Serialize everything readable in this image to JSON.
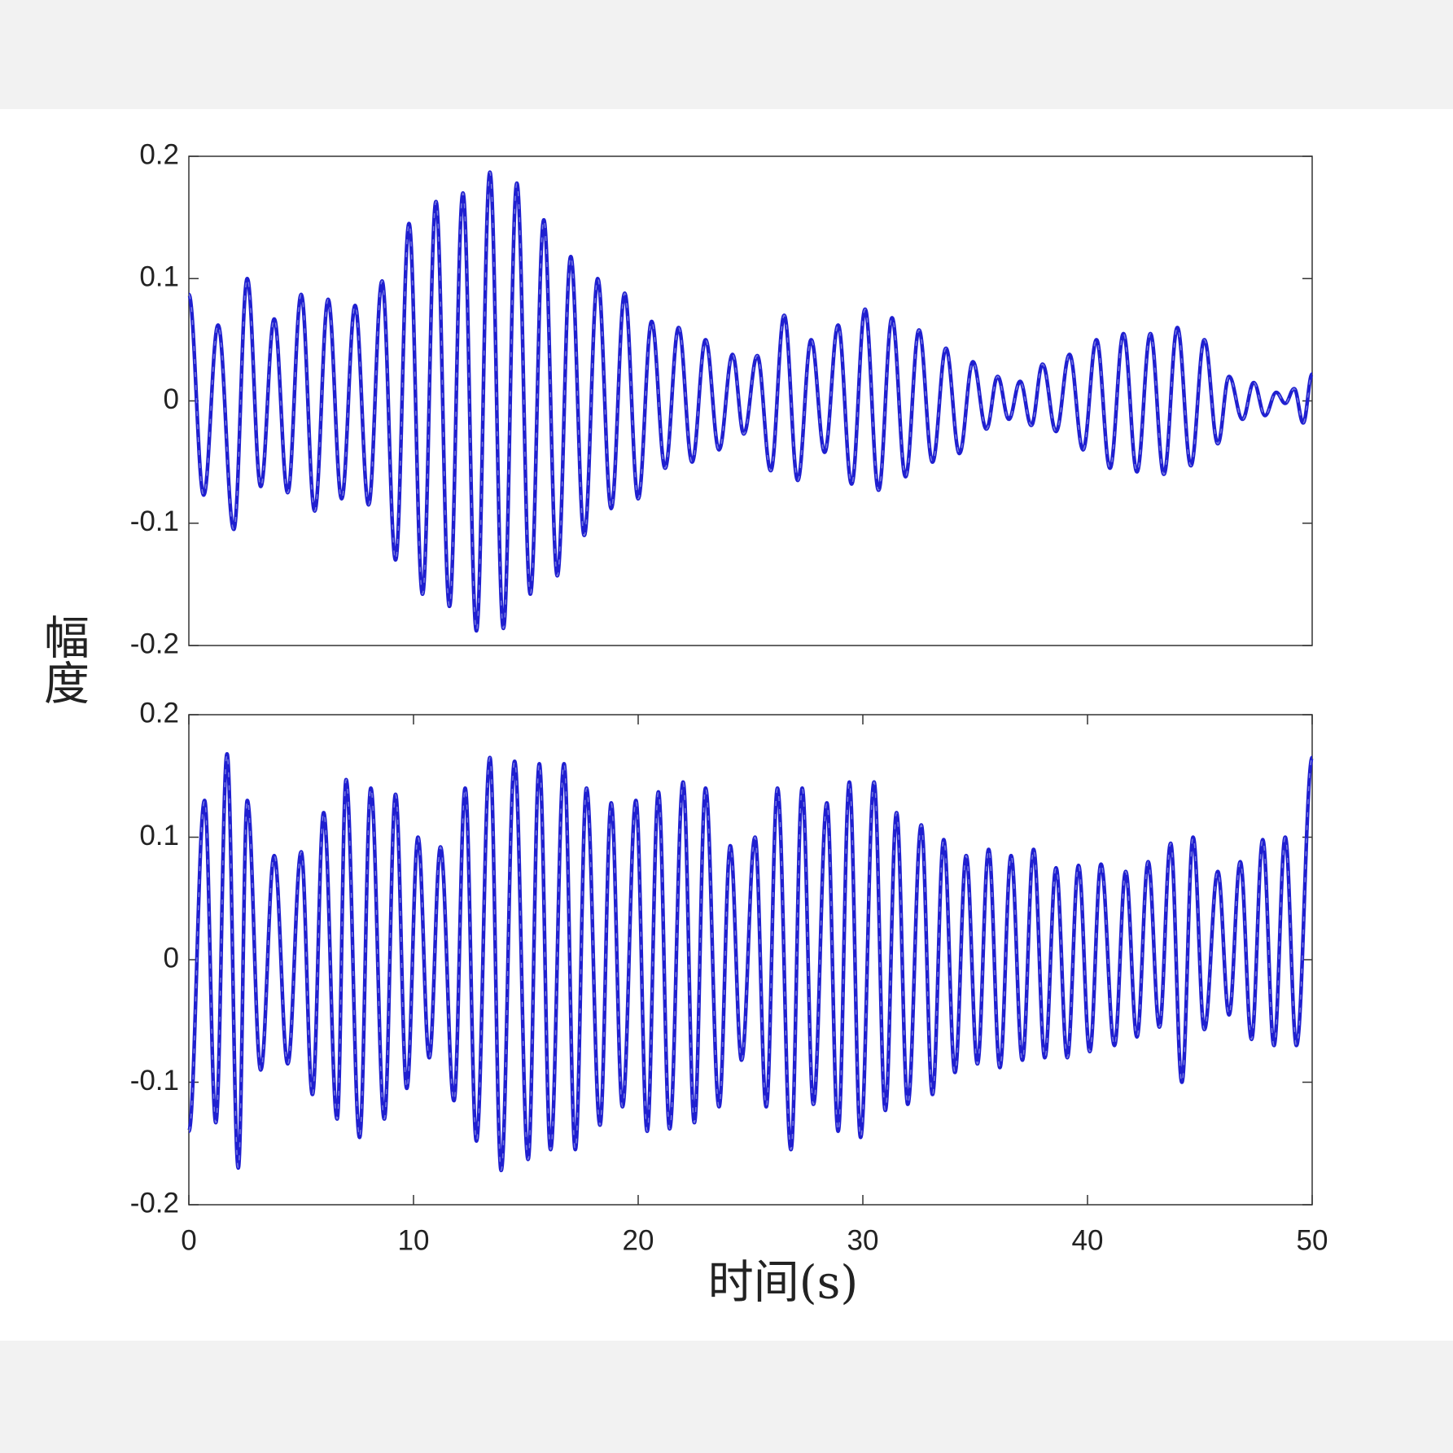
{
  "chart_data": [
    {
      "type": "line",
      "ylabel": "幅度",
      "color": "#1f1fd0",
      "xlim": [
        0,
        50
      ],
      "ylim": [
        -0.2,
        0.2
      ],
      "yticks": [
        0.2,
        0.1,
        0,
        -0.1,
        -0.2
      ],
      "x": [
        0,
        0.66,
        1.3,
        2.0,
        2.6,
        3.2,
        3.8,
        4.4,
        5.0,
        5.6,
        6.2,
        6.8,
        7.4,
        8.0,
        8.6,
        9.2,
        9.8,
        10.4,
        11.0,
        11.6,
        12.2,
        12.8,
        13.4,
        14.0,
        14.6,
        15.2,
        15.8,
        16.4,
        17.0,
        17.6,
        18.2,
        18.8,
        19.4,
        20.0,
        20.6,
        21.2,
        21.8,
        22.4,
        23.0,
        23.6,
        24.2,
        24.7,
        25.3,
        25.9,
        26.5,
        27.1,
        27.7,
        28.3,
        28.9,
        29.5,
        30.1,
        30.7,
        31.3,
        31.9,
        32.5,
        33.1,
        33.7,
        34.3,
        34.9,
        35.5,
        36.0,
        36.5,
        37.0,
        37.5,
        38.0,
        38.6,
        39.2,
        39.8,
        40.4,
        41.0,
        41.6,
        42.2,
        42.8,
        43.4,
        44.0,
        44.6,
        45.2,
        45.8,
        46.3,
        46.9,
        47.4,
        47.9,
        48.4,
        48.8,
        49.2,
        49.6,
        50
      ],
      "values": [
        0.087,
        -0.077,
        0.062,
        -0.105,
        0.1,
        -0.07,
        0.067,
        -0.075,
        0.087,
        -0.09,
        0.083,
        -0.08,
        0.078,
        -0.085,
        0.098,
        -0.13,
        0.145,
        -0.158,
        0.163,
        -0.168,
        0.17,
        -0.188,
        0.187,
        -0.186,
        0.178,
        -0.158,
        0.148,
        -0.143,
        0.118,
        -0.11,
        0.1,
        -0.088,
        0.088,
        -0.08,
        0.065,
        -0.055,
        0.06,
        -0.05,
        0.05,
        -0.04,
        0.038,
        -0.027,
        0.037,
        -0.057,
        0.07,
        -0.065,
        0.05,
        -0.042,
        0.062,
        -0.068,
        0.075,
        -0.073,
        0.068,
        -0.062,
        0.058,
        -0.05,
        0.043,
        -0.043,
        0.032,
        -0.023,
        0.02,
        -0.015,
        0.016,
        -0.02,
        0.03,
        -0.025,
        0.038,
        -0.04,
        0.05,
        -0.055,
        0.055,
        -0.058,
        0.055,
        -0.06,
        0.06,
        -0.053,
        0.05,
        -0.035,
        0.02,
        -0.015,
        0.015,
        -0.012,
        0.007,
        -0.002,
        0.01,
        -0.018,
        0.022
      ]
    },
    {
      "type": "line",
      "xlabel": "时间(s)",
      "color": "#1f1fd0",
      "xlim": [
        0,
        50
      ],
      "ylim": [
        -0.2,
        0.2
      ],
      "yticks": [
        0.2,
        0.1,
        0,
        -0.1,
        -0.2
      ],
      "xticks": [
        0,
        10,
        20,
        30,
        40,
        50
      ],
      "x": [
        0,
        0.7,
        1.2,
        1.7,
        2.2,
        2.6,
        3.2,
        3.8,
        4.4,
        5.0,
        5.5,
        6.0,
        6.6,
        7.0,
        7.6,
        8.1,
        8.7,
        9.2,
        9.7,
        10.2,
        10.7,
        11.2,
        11.8,
        12.3,
        12.8,
        13.4,
        13.9,
        14.5,
        15.1,
        15.6,
        16.1,
        16.7,
        17.2,
        17.7,
        18.3,
        18.8,
        19.3,
        19.9,
        20.4,
        20.9,
        21.4,
        22.0,
        22.5,
        23.0,
        23.6,
        24.1,
        24.6,
        25.2,
        25.7,
        26.2,
        26.8,
        27.3,
        27.8,
        28.4,
        28.9,
        29.4,
        29.9,
        30.5,
        31.0,
        31.5,
        32.0,
        32.6,
        33.1,
        33.6,
        34.1,
        34.6,
        35.1,
        35.6,
        36.1,
        36.6,
        37.1,
        37.6,
        38.1,
        38.6,
        39.1,
        39.6,
        40.1,
        40.6,
        41.2,
        41.7,
        42.2,
        42.7,
        43.2,
        43.7,
        44.2,
        44.7,
        45.2,
        45.8,
        46.3,
        46.8,
        47.3,
        47.8,
        48.3,
        48.8,
        49.3,
        50
      ],
      "values": [
        -0.14,
        0.13,
        -0.133,
        0.168,
        -0.17,
        0.13,
        -0.09,
        0.085,
        -0.085,
        0.088,
        -0.11,
        0.12,
        -0.13,
        0.147,
        -0.145,
        0.14,
        -0.13,
        0.135,
        -0.105,
        0.1,
        -0.08,
        0.092,
        -0.115,
        0.14,
        -0.148,
        0.165,
        -0.172,
        0.162,
        -0.163,
        0.16,
        -0.155,
        0.16,
        -0.155,
        0.14,
        -0.135,
        0.128,
        -0.12,
        0.13,
        -0.14,
        0.137,
        -0.138,
        0.145,
        -0.133,
        0.14,
        -0.12,
        0.093,
        -0.082,
        0.1,
        -0.12,
        0.14,
        -0.155,
        0.14,
        -0.118,
        0.128,
        -0.14,
        0.145,
        -0.145,
        0.145,
        -0.123,
        0.12,
        -0.118,
        0.11,
        -0.11,
        0.098,
        -0.092,
        0.085,
        -0.085,
        0.09,
        -0.088,
        0.085,
        -0.082,
        0.09,
        -0.08,
        0.075,
        -0.08,
        0.077,
        -0.075,
        0.078,
        -0.07,
        0.072,
        -0.063,
        0.08,
        -0.055,
        0.095,
        -0.1,
        0.1,
        -0.057,
        0.072,
        -0.045,
        0.08,
        -0.065,
        0.098,
        -0.07,
        0.1,
        -0.07,
        0.165
      ]
    }
  ]
}
